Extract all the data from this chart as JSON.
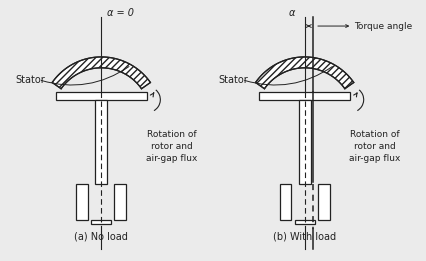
{
  "bg_color": "#ebebeb",
  "line_color": "#222222",
  "title_a": "(a) No load",
  "title_b": "(b) With load",
  "label_stator": "Stator",
  "label_alpha_a": "α = 0",
  "label_alpha_b": "α",
  "label_torque": "Torque angle",
  "label_rotation": "Rotation of\nrotor and\nair-gap flux",
  "font_size": 7.0,
  "font_size_label": 6.5
}
